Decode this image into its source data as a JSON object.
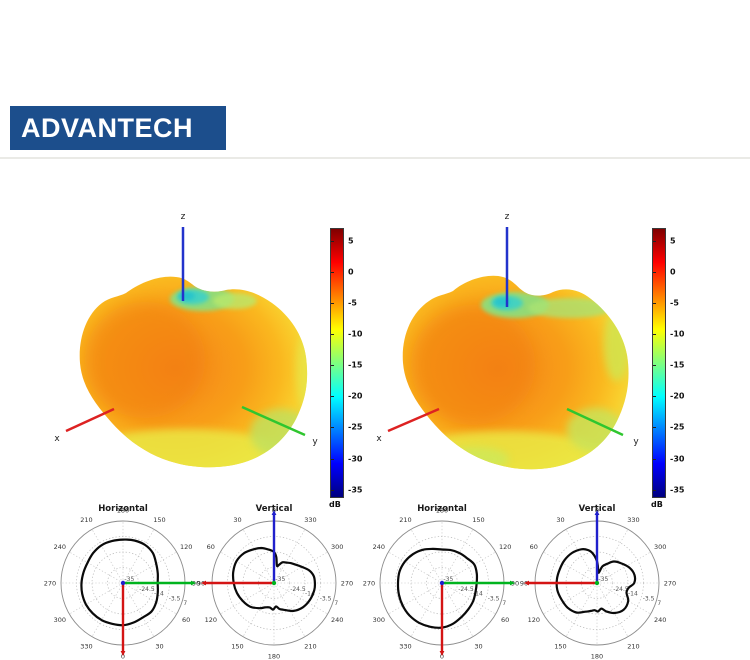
{
  "header": {
    "logo_text": "ADVANTECH",
    "logo_bg": "#1c4e8c",
    "divider_color": "#eaeae6"
  },
  "colorbar": {
    "unit": "dB",
    "ticks": [
      5,
      0,
      -5,
      -10,
      -15,
      -20,
      -25,
      -30,
      -35
    ],
    "vmax": 7,
    "vmin": -36,
    "colormap": "jet",
    "jet_stops": [
      "#7f0000",
      "#ff0000",
      "#ff7f00",
      "#ffff00",
      "#7fff7f",
      "#00ffff",
      "#007fff",
      "#0000ff",
      "#00007f"
    ]
  },
  "chart_data": [
    {
      "type": "3d-radiation-pattern",
      "position": "left",
      "axis_labels": {
        "x": "x",
        "y": "y",
        "z": "z"
      },
      "colorbar_unit": "dB",
      "colorbar_ticks": [
        5,
        0,
        -5,
        -10,
        -15,
        -20,
        -25,
        -30,
        -35
      ],
      "colorbar_range_db": [
        7,
        -36
      ],
      "colormap": "jet"
    },
    {
      "type": "3d-radiation-pattern",
      "position": "right",
      "axis_labels": {
        "x": "x",
        "y": "y",
        "z": "z"
      },
      "colorbar_unit": "dB",
      "colorbar_ticks": [
        5,
        0,
        -5,
        -10,
        -15,
        -20,
        -25,
        -30,
        -35
      ],
      "colorbar_range_db": [
        7,
        -36
      ],
      "colormap": "jet"
    },
    {
      "type": "polar",
      "title": "Horizontal",
      "cut_plane": "horizontal",
      "angle_offset_deg": -90,
      "angle_labels": [
        0,
        30,
        60,
        90,
        120,
        150,
        180,
        210,
        240,
        270,
        300,
        330
      ],
      "radial_range_db": [
        -35,
        7
      ],
      "center_label": "-35",
      "ring_labels": [
        "-24.5",
        "-14",
        "-3.5",
        "7"
      ],
      "overlay_axes": [
        {
          "name": "y-axis",
          "color": "#00b41e",
          "angle_deg": 90
        },
        {
          "name": "x-axis",
          "color": "#d41414",
          "angle_deg": 0
        }
      ],
      "center_dot_color": "#2020cc",
      "curve_db": [
        [
          0,
          -6.4
        ],
        [
          15,
          -7.3
        ],
        [
          30,
          -8.1
        ],
        [
          45,
          -7.7
        ],
        [
          60,
          -9
        ],
        [
          75,
          -10.6
        ],
        [
          90,
          -11.5
        ],
        [
          105,
          -10.6
        ],
        [
          120,
          -9
        ],
        [
          135,
          -6.4
        ],
        [
          150,
          -5.2
        ],
        [
          165,
          -5.2
        ],
        [
          180,
          -5.6
        ],
        [
          195,
          -5.6
        ],
        [
          210,
          -5.6
        ],
        [
          225,
          -6.4
        ],
        [
          240,
          -7.3
        ],
        [
          255,
          -7.3
        ],
        [
          270,
          -6.9
        ],
        [
          285,
          -6.4
        ],
        [
          300,
          -6
        ],
        [
          315,
          -6
        ],
        [
          330,
          -6
        ],
        [
          345,
          -6.4
        ]
      ]
    },
    {
      "type": "polar",
      "title": "Vertical",
      "cut_plane": "vertical",
      "angle_offset_deg": 90,
      "angle_labels": [
        0,
        30,
        60,
        90,
        120,
        150,
        180,
        210,
        240,
        270,
        300,
        330
      ],
      "radial_range_db": [
        -35,
        7
      ],
      "center_label": "-35",
      "ring_labels": [
        "-24.5",
        "-14",
        "-3.5",
        "7"
      ],
      "overlay_axes": [
        {
          "name": "z-axis",
          "color": "#2020cc",
          "angle_deg": 0
        },
        {
          "name": "x-axis",
          "color": "#d41414",
          "angle_deg": 90
        }
      ],
      "center_dot_color": "#00b41e",
      "curve_db": [
        [
          0,
          -14
        ],
        [
          10,
          -11.9
        ],
        [
          20,
          -9.8
        ],
        [
          30,
          -8.5
        ],
        [
          45,
          -6.4
        ],
        [
          60,
          -5.6
        ],
        [
          75,
          -6.4
        ],
        [
          90,
          -7.7
        ],
        [
          105,
          -9
        ],
        [
          120,
          -10.6
        ],
        [
          135,
          -12.3
        ],
        [
          150,
          -15.3
        ],
        [
          160,
          -17.4
        ],
        [
          170,
          -18.2
        ],
        [
          178,
          -17
        ],
        [
          185,
          -19
        ],
        [
          192,
          -17
        ],
        [
          200,
          -15.7
        ],
        [
          215,
          -11.9
        ],
        [
          230,
          -9.4
        ],
        [
          245,
          -8.1
        ],
        [
          260,
          -7.3
        ],
        [
          270,
          -7.3
        ],
        [
          280,
          -7.7
        ],
        [
          290,
          -9.8
        ],
        [
          300,
          -13.2
        ],
        [
          310,
          -15.7
        ],
        [
          320,
          -17.4
        ],
        [
          330,
          -19
        ],
        [
          338,
          -19.9
        ],
        [
          344,
          -22
        ],
        [
          350,
          -23.2
        ],
        [
          355,
          -17.4
        ]
      ]
    },
    {
      "type": "polar",
      "title": "Horizontal",
      "cut_plane": "horizontal",
      "angle_offset_deg": -90,
      "angle_labels": [
        0,
        30,
        60,
        90,
        120,
        150,
        180,
        210,
        240,
        270,
        300,
        330
      ],
      "radial_range_db": [
        -35,
        7
      ],
      "center_label": "-35",
      "ring_labels": [
        "-24.5",
        "-14",
        "-3.5",
        "7"
      ],
      "overlay_axes": [
        {
          "name": "y-axis",
          "color": "#00b41e",
          "angle_deg": 90
        },
        {
          "name": "x-axis",
          "color": "#d41414",
          "angle_deg": 0
        }
      ],
      "center_dot_color": "#2020cc",
      "curve_db": [
        [
          0,
          -4.8
        ],
        [
          15,
          -6.4
        ],
        [
          30,
          -8.5
        ],
        [
          45,
          -9.8
        ],
        [
          60,
          -10.6
        ],
        [
          75,
          -11.5
        ],
        [
          90,
          -11.5
        ],
        [
          105,
          -10.6
        ],
        [
          120,
          -9.8
        ],
        [
          135,
          -11.1
        ],
        [
          150,
          -11.5
        ],
        [
          165,
          -11.9
        ],
        [
          180,
          -12.3
        ],
        [
          195,
          -11.1
        ],
        [
          210,
          -9
        ],
        [
          225,
          -7.3
        ],
        [
          240,
          -6
        ],
        [
          255,
          -5.2
        ],
        [
          270,
          -5.2
        ],
        [
          285,
          -4.8
        ],
        [
          300,
          -4.3
        ],
        [
          315,
          -3.9
        ],
        [
          330,
          -3.9
        ],
        [
          345,
          -4.3
        ]
      ]
    },
    {
      "type": "polar",
      "title": "Vertical",
      "cut_plane": "vertical",
      "angle_offset_deg": 90,
      "angle_labels": [
        0,
        30,
        60,
        90,
        120,
        150,
        180,
        210,
        240,
        270,
        300,
        330
      ],
      "radial_range_db": [
        -35,
        7
      ],
      "center_label": "-35",
      "ring_labels": [
        "-24.5",
        "-14",
        "-3.5",
        "7"
      ],
      "overlay_axes": [
        {
          "name": "z-axis",
          "color": "#2020cc",
          "angle_deg": 0
        },
        {
          "name": "x-axis",
          "color": "#d41414",
          "angle_deg": 90
        }
      ],
      "center_dot_color": "#00b41e",
      "curve_db": [
        [
          0,
          -20.3
        ],
        [
          8,
          -14.8
        ],
        [
          15,
          -11.9
        ],
        [
          25,
          -9.8
        ],
        [
          40,
          -8.5
        ],
        [
          55,
          -8.1
        ],
        [
          70,
          -8.1
        ],
        [
          85,
          -7.7
        ],
        [
          100,
          -7.7
        ],
        [
          115,
          -8.5
        ],
        [
          130,
          -9
        ],
        [
          145,
          -10.6
        ],
        [
          158,
          -14
        ],
        [
          168,
          -15.7
        ],
        [
          175,
          -16.5
        ],
        [
          182,
          -15.7
        ],
        [
          190,
          -17.4
        ],
        [
          198,
          -14.8
        ],
        [
          210,
          -11.5
        ],
        [
          225,
          -9.4
        ],
        [
          240,
          -10.6
        ],
        [
          252,
          -14
        ],
        [
          262,
          -13.2
        ],
        [
          270,
          -9.8
        ],
        [
          282,
          -9
        ],
        [
          295,
          -10.6
        ],
        [
          310,
          -14
        ],
        [
          322,
          -16.5
        ],
        [
          332,
          -20.3
        ],
        [
          342,
          -23.2
        ],
        [
          350,
          -27.9
        ],
        [
          355,
          -25.8
        ]
      ]
    }
  ]
}
